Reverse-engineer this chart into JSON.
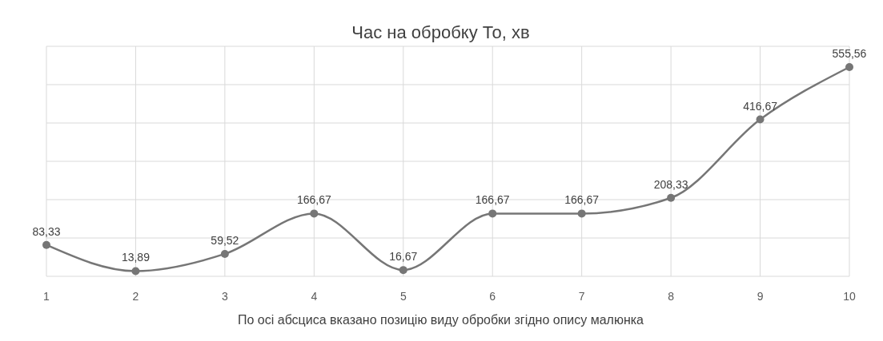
{
  "chart_data": {
    "type": "line",
    "title": "Час на обробку  То, хв",
    "xlabel": "По осі абсциса вказано позицію виду обробки згідно опису малюнка",
    "categories": [
      "1",
      "2",
      "3",
      "4",
      "5",
      "6",
      "7",
      "8",
      "9",
      "10"
    ],
    "series": [
      {
        "color": "#767676",
        "values": [
          83.33,
          13.89,
          59.52,
          166.67,
          16.67,
          166.67,
          166.67,
          208.33,
          416.67,
          555.56
        ],
        "value_labels": [
          "83,33",
          "13,89",
          "59,52",
          "166,67",
          "16,67",
          "166,67",
          "166,67",
          "208,33",
          "416,67",
          "555,56"
        ]
      }
    ],
    "grid": true,
    "tick_labels": "x",
    "marker": "circle",
    "line_style": "solid"
  }
}
